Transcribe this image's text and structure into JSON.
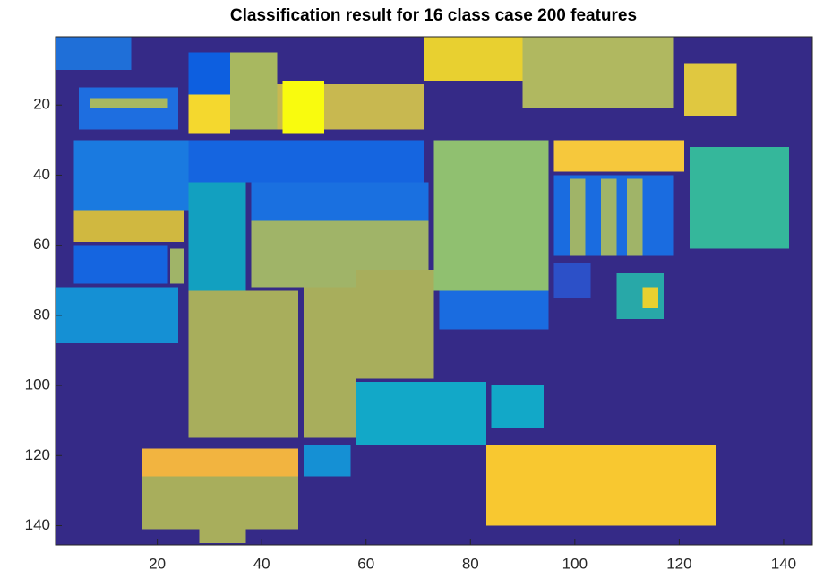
{
  "chart_data": {
    "type": "image",
    "title": "Classification result for 16 class case 200 features",
    "xlim": [
      0.5,
      145.5
    ],
    "ylim": [
      0.5,
      145.5
    ],
    "xticks": [
      20,
      40,
      60,
      80,
      100,
      120,
      140
    ],
    "yticks": [
      20,
      40,
      60,
      80,
      100,
      120,
      140
    ],
    "y_reversed": true
  }
}
